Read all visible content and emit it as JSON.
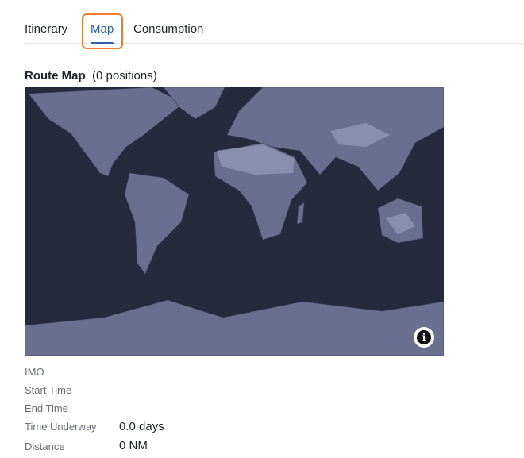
{
  "tabs": [
    {
      "label": "Itinerary"
    },
    {
      "label": "Map",
      "active": true
    },
    {
      "label": "Consumption"
    }
  ],
  "section": {
    "title": "Route Map",
    "count": "(0 positions)"
  },
  "map": {
    "ocean_color": "#252a3f",
    "land_color": "#6a6e8f",
    "info_icon": "info-icon"
  },
  "details": [
    {
      "label": "IMO",
      "value": ""
    },
    {
      "label": "Start Time",
      "value": ""
    },
    {
      "label": "End Time",
      "value": ""
    },
    {
      "label": "Time Underway",
      "value": "0.0 days"
    },
    {
      "label": "Distance",
      "value": "0 NM"
    }
  ]
}
